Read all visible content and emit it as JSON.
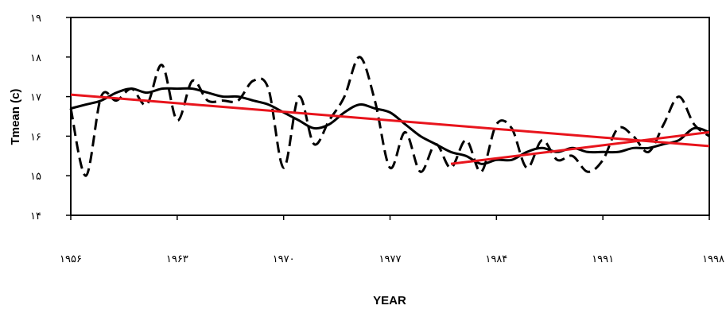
{
  "chart_data": {
    "type": "line",
    "title": "",
    "xlabel": "YEAR",
    "ylabel": "Tmean (c)",
    "xlim": [
      1956,
      1998
    ],
    "ylim": [
      14,
      19
    ],
    "x_ticks": [
      1956,
      1963,
      1970,
      1977,
      1984,
      1991,
      1998
    ],
    "x_tick_labels": [
      "۱۹۵۶",
      "۱۹۶۳",
      "۱۹۷۰",
      "۱۹۷۷",
      "۱۹۸۴",
      "۱۹۹۱",
      "۱۹۹۸"
    ],
    "y_ticks": [
      14,
      15,
      16,
      17,
      18,
      19
    ],
    "y_tick_labels": [
      "۱۴",
      "۱۵",
      "۱۶",
      "۱۷",
      "۱۸",
      "۱۹"
    ],
    "grid": false,
    "legend": "none",
    "series": [
      {
        "style": "dashed",
        "color": "#000000",
        "x": [
          1956,
          1957,
          1958,
          1959,
          1960,
          1961,
          1962,
          1963,
          1964,
          1965,
          1966,
          1967,
          1968,
          1969,
          1970,
          1971,
          1972,
          1973,
          1974,
          1975,
          1976,
          1977,
          1978,
          1979,
          1980,
          1981,
          1982,
          1983,
          1984,
          1985,
          1986,
          1987,
          1988,
          1989,
          1990,
          1991,
          1992,
          1993,
          1994,
          1995,
          1996,
          1997,
          1998
        ],
        "y": [
          16.7,
          15.0,
          17.0,
          16.9,
          17.2,
          16.8,
          17.8,
          16.4,
          17.4,
          16.9,
          16.9,
          16.9,
          17.4,
          17.2,
          15.2,
          17.0,
          15.8,
          16.4,
          17.0,
          18.0,
          16.9,
          15.2,
          16.1,
          15.1,
          15.8,
          15.2,
          15.9,
          15.1,
          16.3,
          16.2,
          15.2,
          15.9,
          15.4,
          15.5,
          15.1,
          15.4,
          16.2,
          16.0,
          15.6,
          16.3,
          17.0,
          16.3,
          16.0
        ]
      },
      {
        "style": "solid",
        "color": "#000000",
        "x": [
          1956,
          1957,
          1958,
          1959,
          1960,
          1961,
          1962,
          1963,
          1964,
          1965,
          1966,
          1967,
          1968,
          1969,
          1970,
          1971,
          1972,
          1973,
          1974,
          1975,
          1976,
          1977,
          1978,
          1979,
          1980,
          1981,
          1982,
          1983,
          1984,
          1985,
          1986,
          1987,
          1988,
          1989,
          1990,
          1991,
          1992,
          1993,
          1994,
          1995,
          1996,
          1997,
          1998
        ],
        "y": [
          16.7,
          16.8,
          16.9,
          17.1,
          17.2,
          17.1,
          17.2,
          17.2,
          17.2,
          17.1,
          17.0,
          17.0,
          16.9,
          16.8,
          16.6,
          16.4,
          16.2,
          16.3,
          16.6,
          16.8,
          16.7,
          16.6,
          16.3,
          16.0,
          15.8,
          15.6,
          15.5,
          15.3,
          15.4,
          15.4,
          15.6,
          15.7,
          15.6,
          15.7,
          15.6,
          15.6,
          15.6,
          15.7,
          15.7,
          15.8,
          15.9,
          16.2,
          16.1
        ]
      },
      {
        "style": "solid",
        "color": "#e8141c",
        "x": [
          1956,
          1998
        ],
        "y": [
          17.05,
          15.75
        ]
      },
      {
        "style": "solid",
        "color": "#e8141c",
        "x": [
          1981,
          1998
        ],
        "y": [
          15.3,
          16.1
        ]
      }
    ]
  }
}
